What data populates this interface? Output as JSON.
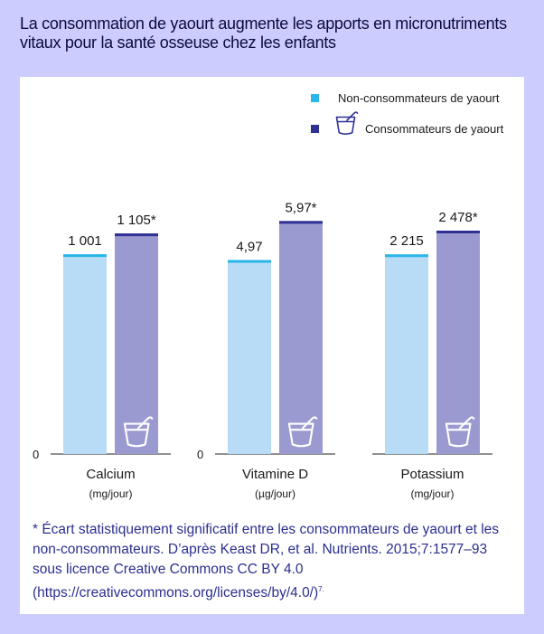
{
  "title": "La consommation de yaourt augmente les apports en micronutriments vitaux pour la santé osseuse chez les enfants",
  "colors": {
    "background": "#ccccff",
    "panel": "#ffffff",
    "non_fill": "#b8dcf6",
    "non_stroke": "#29b6e8",
    "cons_fill": "#9a9ad0",
    "cons_stroke": "#2e3192",
    "text": "#1a1a1a",
    "footnote": "#2b2f8f"
  },
  "legend": {
    "position": "top-right",
    "items": [
      {
        "label": "Non-consommateurs de yaourt",
        "icon": "cyan-square"
      },
      {
        "label": "Consommateurs de yaourt",
        "icon": "yogurt-cup-icon"
      }
    ]
  },
  "chart_data": [
    {
      "type": "bar",
      "xlabel": "Calcium",
      "unit": "(mg/jour)",
      "ylim": [
        0,
        1400
      ],
      "zero_label": "0",
      "series": [
        {
          "name": "Non-consommateurs de yaourt",
          "values": [
            1001
          ],
          "labels": [
            "1 001"
          ],
          "significant": [
            false
          ]
        },
        {
          "name": "Consommateurs de yaourt",
          "values": [
            1105
          ],
          "labels": [
            "1 105*"
          ],
          "significant": [
            true
          ]
        }
      ]
    },
    {
      "type": "bar",
      "xlabel": "Vitamine D",
      "unit": "(µg/jour)",
      "ylim": [
        0,
        7.16
      ],
      "zero_label": "0",
      "series": [
        {
          "name": "Non-consommateurs de yaourt",
          "values": [
            4.97
          ],
          "labels": [
            "4,97"
          ],
          "significant": [
            false
          ]
        },
        {
          "name": "Consommateurs de yaourt",
          "values": [
            5.97
          ],
          "labels": [
            "5,97*"
          ],
          "significant": [
            true
          ]
        }
      ]
    },
    {
      "type": "bar",
      "xlabel": "Potassium",
      "unit": "(mg/jour)",
      "ylim": [
        0,
        3100
      ],
      "zero_label": "",
      "series": [
        {
          "name": "Non-consommateurs de yaourt",
          "values": [
            2215
          ],
          "labels": [
            "2 215"
          ],
          "significant": [
            false
          ]
        },
        {
          "name": "Consommateurs de yaourt",
          "values": [
            2478
          ],
          "labels": [
            "2 478*"
          ],
          "significant": [
            true
          ]
        }
      ]
    }
  ],
  "footnote": {
    "text": "* Écart statistiquement significatif entre les consommateurs de yaourt et les non-consommateurs. D’après Keast DR, et al. Nutrients. 2015;7:1577–93 sous licence Creative Commons CC BY 4.0 (https://creativecommons.org/licenses/by/4.0/)",
    "ref": "7."
  }
}
